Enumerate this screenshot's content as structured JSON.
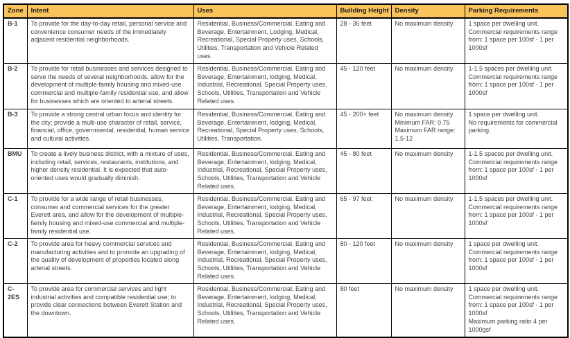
{
  "colors": {
    "header_bg": "#FBC45A",
    "border": "#000000",
    "body_text": "#3F3F3F",
    "header_text": "#1A1A1A"
  },
  "table": {
    "columns": [
      "Zone",
      "Intent",
      "Uses",
      "Building Height",
      "Density",
      "Parking Requirements"
    ],
    "rows": [
      {
        "zone": "B-1",
        "intent": "To provide for the day-to-day retail, personal service and convenience consumer needs of the immediately adjacent residential neighborhoods.",
        "uses": "Residential, Business/Commercial, Eating and Beverage, Entertainment, Lodging, Medical, Recreational, Special Property uses, Schools, Utilities, Transportation and Vehicle Related uses.",
        "building_height": "28 - 35 feet",
        "density": "No maximum density",
        "parking": "1 space per dwelling unit.\nCommercial requirements range from: 1 space per 100sf - 1 per 1000sf"
      },
      {
        "zone": "B-2",
        "intent": "To provide for retail businesses and services designed to serve the needs of several neighborhoods, allow for the development of multiple-family housing and mixed-use commercial and multiple-family residential use, and allow for businesses which are oriented to arterial streets.",
        "uses": "Residential, Business/Commercial, Eating and Beverage, Entertainment, lodging, Medical, Industrial, Recreational, Special Property uses, Schools, Utilities, Transportation and Vehicle Related uses.",
        "building_height": "45 - 120 feet",
        "density": "No maximum density",
        "parking": "1-1.5 spaces per dwelling unit.\nCommercial requirements range from: 1 space per 100sf - 1 per 1000sf"
      },
      {
        "zone": "B-3",
        "intent": "To provide a strong central urban focus and identity for the city; provide a multi-use character of retail, service, financial, office, governmental, residential, human service and cultural activities.",
        "uses": "Residential, Business/Commercial, Eating and Beverage, Entertainment, lodging, Medical, Recreational, Special Property uses, Schools, Utilities, Transportation.",
        "building_height": "45 - 200+ feet",
        "density": "No maximum density\nMinimum FAR: 0.75\nMaximum FAR range: 1.5-12",
        "parking": "1 space per dwelling unit.\nNo requirements for commercial parking."
      },
      {
        "zone": "BMU",
        "intent": "To create a lively business district,  with a mixture of uses, including retail, services, restaurants, institutions, and higher density residential. It is expected that auto-oriented uses would gradually diminish.",
        "uses": "Residential, Business/Commercial, Eating and Beverage, Entertainment, lodging, Medical, Industrial, Recreational, Special Property uses, Schools, Utilities, Transportation and Vehicle Related uses.",
        "building_height": "45 - 80 feet",
        "density": "No maximum density",
        "parking": "1-1.5  spaces per dwelling unit.\nCommercial requirements range from: 1 space per 100sf - 1 per 1000sf"
      },
      {
        "zone": "C-1",
        "intent": "To provide for a wide range of retail businesses, consumer and commercial services for the greater Everett area, and allow for the development of multiple-family housing and mixed-use commercial and multiple-family residential use.",
        "uses": "Residential, Business/Commercial, Eating and Beverage, Entertainment, lodging, Medical, Industrial, Recreational, Special Property uses, Schools, Utilities, Transportation and Vehicle Related uses.",
        "building_height": "65 - 97 feet",
        "density": "No maximum density",
        "parking": "1-1.5 spaces per dwelling unit.\nCommercial requirements range from: 1 space per 100sf - 1 per 1000sf"
      },
      {
        "zone": "C-2",
        "intent": "To provide area for heavy commercial services and manufacturing activities and to promote an upgrading of the quality of development of properties located along arterial streets.",
        "uses": "Residential, Business/Commercial, Eating and Beverage, Entertainment, lodging, Medical, Industrial, Recreational, Special Property uses, Schools, Utilities, Transportation and Vehicle Related uses.",
        "building_height": "80 - 120 feet",
        "density": "No maximum density",
        "parking": "1 space per dwelling unit.\nCommercial requirements range from: 1 space per 100sf - 1 per 1000sf"
      },
      {
        "zone": "C-2ES",
        "intent": "To provide area for commercial services and light industrial activities and compatible residential use; to provide clear connections between Everett Station and the downtown.",
        "uses": "Residential, Business/Commercial, Eating and Beverage, Entertainment, lodging, Medical, Industrial, Recreational, Special Property uses, Schools, Utilities, Transportation and Vehicle Related uses.",
        "building_height": "80 feet",
        "density": "No maximum density",
        "parking": "1 space per dwelling unit.\nCommercial requirements range from: 1 space per 100sf - 1 per 1000sf\nMaximum parking ratio 4 per 1000gsf"
      }
    ]
  }
}
